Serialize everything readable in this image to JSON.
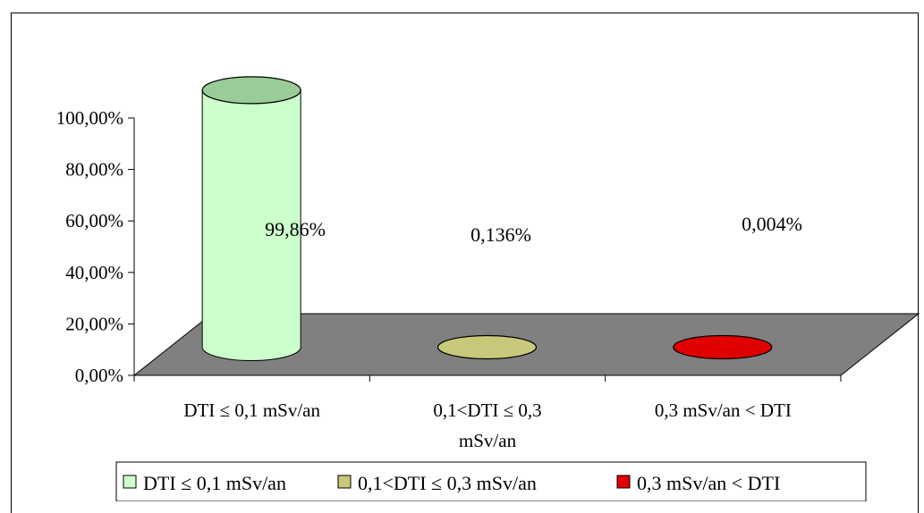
{
  "chart_data": {
    "type": "bar",
    "style": "3d-cylinder",
    "categories": [
      "DTI ≤ 0,1 mSv/an",
      "0,1<DTI ≤ 0,3 mSv/an",
      "0,3 mSv/an < DTI"
    ],
    "category_lines": [
      [
        "DTI ≤ 0,1 mSv/an"
      ],
      [
        "0,1<DTI ≤ 0,3",
        "mSv/an"
      ],
      [
        "0,3 mSv/an < DTI"
      ]
    ],
    "values": [
      99.86,
      0.136,
      0.004
    ],
    "data_labels": [
      "99,86%",
      "0,136%",
      "0,004%"
    ],
    "colors": [
      "#ccffcc",
      "#c8c87a",
      "#e00000"
    ],
    "yticks": [
      "0,00%",
      "20,00%",
      "40,00%",
      "60,00%",
      "80,00%",
      "100,00%"
    ],
    "ylim": [
      0,
      100
    ],
    "legend": {
      "position": "bottom",
      "entries": [
        "DTI ≤ 0,1 mSv/an",
        "0,1<DTI ≤ 0,3 mSv/an",
        "0,3 mSv/an < DTI"
      ]
    },
    "floor_color": "#808080",
    "grid": false
  }
}
